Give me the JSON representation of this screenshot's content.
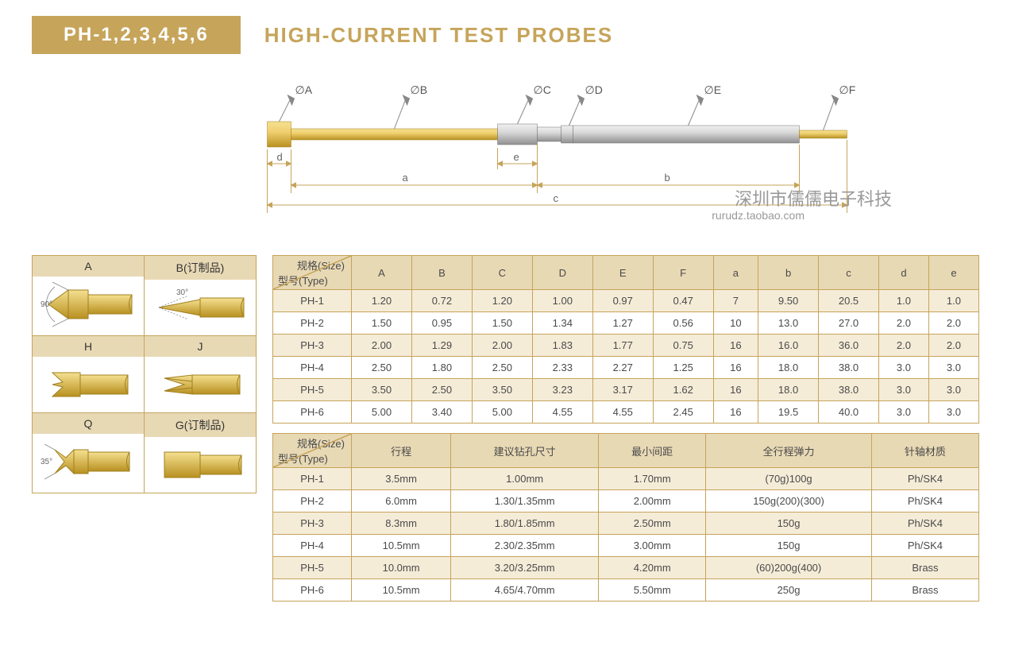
{
  "header": {
    "model": "PH-1,2,3,4,5,6",
    "title": "HIGH-CURRENT TEST PROBES"
  },
  "watermark": "深圳市儒儒电子科技",
  "watermark_url": "rurudz.taobao.com",
  "diagram": {
    "callouts": [
      "∅A",
      "∅B",
      "∅C",
      "∅D",
      "∅E",
      "∅F"
    ],
    "dims": [
      "d",
      "a",
      "e",
      "b",
      "c"
    ],
    "colors": {
      "gold_light": "#f0d070",
      "gold_dark": "#c6a030",
      "silver_light": "#e0e0e0",
      "silver_dark": "#a0a0a0",
      "callout_line": "#888888",
      "dim_line": "#c6a45a"
    }
  },
  "tips": [
    {
      "label": "A",
      "angle": "90°",
      "shape": "cone90"
    },
    {
      "label": "B(订制品)",
      "angle": "30°",
      "shape": "needle"
    },
    {
      "label": "H",
      "angle": "",
      "shape": "crown"
    },
    {
      "label": "J",
      "angle": "",
      "shape": "serrated"
    },
    {
      "label": "Q",
      "angle": "35°",
      "shape": "crown35"
    },
    {
      "label": "G(订制品)",
      "angle": "",
      "shape": "flat"
    }
  ],
  "table1": {
    "corner_top": "规格(Size)",
    "corner_bottom": "型号(Type)",
    "headers": [
      "A",
      "B",
      "C",
      "D",
      "E",
      "F",
      "a",
      "b",
      "c",
      "d",
      "e"
    ],
    "rows": [
      [
        "PH-1",
        "1.20",
        "0.72",
        "1.20",
        "1.00",
        "0.97",
        "0.47",
        "7",
        "9.50",
        "20.5",
        "1.0",
        "1.0"
      ],
      [
        "PH-2",
        "1.50",
        "0.95",
        "1.50",
        "1.34",
        "1.27",
        "0.56",
        "10",
        "13.0",
        "27.0",
        "2.0",
        "2.0"
      ],
      [
        "PH-3",
        "2.00",
        "1.29",
        "2.00",
        "1.83",
        "1.77",
        "0.75",
        "16",
        "16.0",
        "36.0",
        "2.0",
        "2.0"
      ],
      [
        "PH-4",
        "2.50",
        "1.80",
        "2.50",
        "2.33",
        "2.27",
        "1.25",
        "16",
        "18.0",
        "38.0",
        "3.0",
        "3.0"
      ],
      [
        "PH-5",
        "3.50",
        "2.50",
        "3.50",
        "3.23",
        "3.17",
        "1.62",
        "16",
        "18.0",
        "38.0",
        "3.0",
        "3.0"
      ],
      [
        "PH-6",
        "5.00",
        "3.40",
        "5.00",
        "4.55",
        "4.55",
        "2.45",
        "16",
        "19.5",
        "40.0",
        "3.0",
        "3.0"
      ]
    ]
  },
  "table2": {
    "corner_top": "规格(Size)",
    "corner_bottom": "型号(Type)",
    "headers": [
      "行程",
      "建议钻孔尺寸",
      "最小间距",
      "全行程弹力",
      "针轴材质"
    ],
    "rows": [
      [
        "PH-1",
        "3.5mm",
        "1.00mm",
        "1.70mm",
        "(70g)100g",
        "Ph/SK4"
      ],
      [
        "PH-2",
        "6.0mm",
        "1.30/1.35mm",
        "2.00mm",
        "150g(200)(300)",
        "Ph/SK4"
      ],
      [
        "PH-3",
        "8.3mm",
        "1.80/1.85mm",
        "2.50mm",
        "150g",
        "Ph/SK4"
      ],
      [
        "PH-4",
        "10.5mm",
        "2.30/2.35mm",
        "3.00mm",
        "150g",
        "Ph/SK4"
      ],
      [
        "PH-5",
        "10.0mm",
        "3.20/3.25mm",
        "4.20mm",
        "(60)200g(400)",
        "Brass"
      ],
      [
        "PH-6",
        "10.5mm",
        "4.65/4.70mm",
        "5.50mm",
        "250g",
        "Brass"
      ]
    ]
  }
}
